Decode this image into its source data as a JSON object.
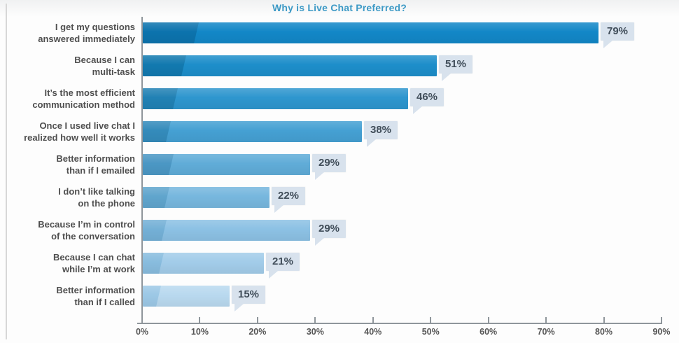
{
  "title": "Why is Live Chat Preferred?",
  "chart_data": {
    "type": "bar",
    "orientation": "horizontal",
    "title": "Why is Live Chat Preferred?",
    "categories": [
      "I get my questions\nanswered immediately",
      "Because I can\nmulti-task",
      "It’s the most efficient\ncommunication method",
      "Once I used live chat I\nrealized how well it works",
      "Better information\nthan if I emailed",
      "I don’t like talking\non the phone",
      "Because I’m in control\nof the conversation",
      "Because I can chat\nwhile I’m at work",
      "Better information\nthan if I called"
    ],
    "values": [
      79,
      51,
      46,
      38,
      29,
      22,
      29,
      21,
      15
    ],
    "value_labels": [
      "79%",
      "51%",
      "46%",
      "38%",
      "29%",
      "22%",
      "29%",
      "21%",
      "15%"
    ],
    "xlabel": "",
    "ylabel": "",
    "xlim": [
      0,
      90
    ],
    "x_tick_labels": [
      "0%",
      "10%",
      "20%",
      "30%",
      "40%",
      "50%",
      "60%",
      "70%",
      "80%",
      "90%"
    ],
    "grid": false,
    "legend": null,
    "colors": {
      "title_text": "#3e9ac6",
      "axis": "#8f969b",
      "category_text": "#4f4f4f",
      "tick_text": "#565656",
      "bubble_bg": "#d8e2ed",
      "bubble_text": "#414e5a",
      "bar_main": [
        "#1287c7",
        "#1d8eca",
        "#2e96ce",
        "#45a0d3",
        "#60acd8",
        "#77b7de",
        "#8cc1e4",
        "#a2cce9",
        "#b9d9ef"
      ],
      "bar_shade": [
        "#0c73ad",
        "#1279af",
        "#2181b4",
        "#348bbb",
        "#4b97c4",
        "#60a5cd",
        "#74b0d6",
        "#88bcde",
        "#9cc8e6"
      ]
    }
  }
}
